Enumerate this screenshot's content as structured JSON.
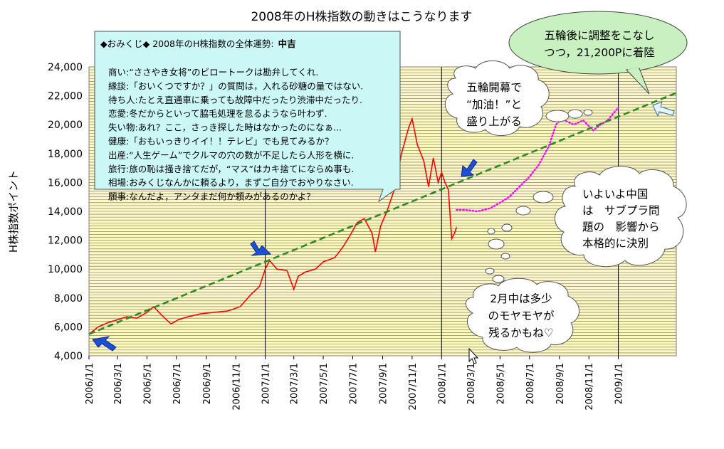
{
  "chart_data": {
    "type": "line",
    "title": "2008年のH株指数の動きはこうなります",
    "ylabel": "H株指数ポイント",
    "xlabel": "",
    "ylim": [
      4000,
      24000
    ],
    "yticks": [
      "4,000",
      "6,000",
      "8,000",
      "10,000",
      "12,000",
      "14,000",
      "16,000",
      "18,000",
      "20,000",
      "22,000",
      "24,000"
    ],
    "xlim": [
      "2006-01-01",
      "2009-05-01"
    ],
    "xticks": [
      "2006/1/1",
      "2006/3/1",
      "2006/5/1",
      "2006/7/1",
      "2006/9/1",
      "2006/11/1",
      "2007/1/1",
      "2007/3/1",
      "2007/5/1",
      "2007/7/1",
      "2007/9/1",
      "2007/11/1",
      "2008/1/1",
      "2008/3/1",
      "2008/5/1",
      "2008/7/1",
      "2008/9/1",
      "2008/11/1",
      "2009/1/1"
    ],
    "grid": "horizontal",
    "series": [
      {
        "style": "solid-red",
        "color": "#ff0000",
        "points": [
          [
            "2006-01-01",
            5500
          ],
          [
            "2006-01-20",
            6000
          ],
          [
            "2006-02-10",
            6300
          ],
          [
            "2006-03-01",
            6500
          ],
          [
            "2006-03-20",
            6700
          ],
          [
            "2006-04-10",
            6600
          ],
          [
            "2006-05-01",
            7000
          ],
          [
            "2006-05-15",
            7400
          ],
          [
            "2006-06-01",
            6800
          ],
          [
            "2006-06-20",
            6200
          ],
          [
            "2006-07-05",
            6500
          ],
          [
            "2006-07-25",
            6700
          ],
          [
            "2006-08-20",
            6900
          ],
          [
            "2006-09-15",
            7000
          ],
          [
            "2006-10-15",
            7100
          ],
          [
            "2006-11-10",
            7400
          ],
          [
            "2006-12-01",
            8200
          ],
          [
            "2006-12-20",
            8800
          ],
          [
            "2007-01-01",
            10000
          ],
          [
            "2007-01-10",
            10600
          ],
          [
            "2007-01-25",
            10000
          ],
          [
            "2007-02-15",
            9900
          ],
          [
            "2007-03-01",
            8600
          ],
          [
            "2007-03-10",
            9500
          ],
          [
            "2007-03-25",
            9800
          ],
          [
            "2007-04-15",
            10000
          ],
          [
            "2007-05-01",
            10500
          ],
          [
            "2007-05-25",
            10800
          ],
          [
            "2007-06-10",
            11500
          ],
          [
            "2007-06-25",
            12300
          ],
          [
            "2007-07-10",
            13200
          ],
          [
            "2007-07-25",
            13500
          ],
          [
            "2007-08-10",
            12500
          ],
          [
            "2007-08-17",
            11200
          ],
          [
            "2007-08-28",
            13000
          ],
          [
            "2007-09-10",
            14000
          ],
          [
            "2007-09-25",
            15500
          ],
          [
            "2007-10-10",
            18000
          ],
          [
            "2007-10-25",
            19800
          ],
          [
            "2007-11-01",
            20400
          ],
          [
            "2007-11-12",
            18600
          ],
          [
            "2007-11-25",
            17500
          ],
          [
            "2007-12-05",
            15700
          ],
          [
            "2007-12-15",
            17700
          ],
          [
            "2007-12-25",
            16000
          ],
          [
            "2008-01-01",
            16700
          ],
          [
            "2008-01-08",
            16000
          ],
          [
            "2008-01-15",
            15500
          ],
          [
            "2008-01-22",
            12100
          ],
          [
            "2008-01-28",
            12500
          ],
          [
            "2008-02-01",
            12900
          ]
        ]
      },
      {
        "style": "dotted-magenta",
        "color": "#ff00ff",
        "points": [
          [
            "2008-02-01",
            14100
          ],
          [
            "2008-02-20",
            14100
          ],
          [
            "2008-03-15",
            14000
          ],
          [
            "2008-04-10",
            14200
          ],
          [
            "2008-05-01",
            14600
          ],
          [
            "2008-05-20",
            15000
          ],
          [
            "2008-06-10",
            15700
          ],
          [
            "2008-07-01",
            16400
          ],
          [
            "2008-07-20",
            17200
          ],
          [
            "2008-08-10",
            18500
          ],
          [
            "2008-08-25",
            20000
          ],
          [
            "2008-09-05",
            20400
          ],
          [
            "2008-10-01",
            20000
          ],
          [
            "2008-10-20",
            20300
          ],
          [
            "2008-11-10",
            19600
          ],
          [
            "2008-11-25",
            20000
          ],
          [
            "2008-12-10",
            20300
          ],
          [
            "2009-01-01",
            21200
          ]
        ]
      },
      {
        "style": "dashed-green-trend",
        "color": "#2e8b1e",
        "points": [
          [
            "2006-01-01",
            5500
          ],
          [
            "2009-05-01",
            22200
          ]
        ]
      }
    ],
    "annotations": {
      "omikuji": {
        "header": "◆おみくじ◆ 2008年のH株指数の全体運勢:",
        "fortune": "中吉",
        "lines": [
          "商い:“ささやき女将”のビロートークは勘弁してくれ.",
          "縁談:「おいくつですか？」の質問は，入れる砂糖の量ではない.",
          "待ち人:たとえ直通車に乗っても故障中だったり渋滞中だったり.",
          "恋愛:冬だからといって脇毛処理を怠るようなら叶わず.",
          "失い物:あれ？ここ，さっき探した時はなかったのになぁ...",
          "健康:「おもいっきりイイ！！テレビ」でも見てみるか？",
          "出産:“人生ゲーム”でクルマの穴の数が不足したら人形を横に.",
          "旅行:旅の恥は掻き捨てだが，“マス”はカキ捨てにならぬ事も.",
          "相場:おみくじなんかに頼るより，まずご自分でおやりなさい.",
          "願事:なんだよ，アンタまだ何か頼みがあるのかよ？"
        ]
      },
      "bubble_olympics": [
        "五輪開幕で",
        "“加油！”と",
        "盛り上がる"
      ],
      "bubble_after": [
        "五輪後に調整をこなし",
        "つつ，21,200Pに着陸"
      ],
      "bubble_subprime": [
        "いよいよ中国",
        "は　サブプラ問",
        "題の　影響から",
        "本格的に決別"
      ],
      "bubble_february": [
        "2月中は多少",
        "のモヤモヤが",
        "残るかもね♡"
      ]
    }
  }
}
